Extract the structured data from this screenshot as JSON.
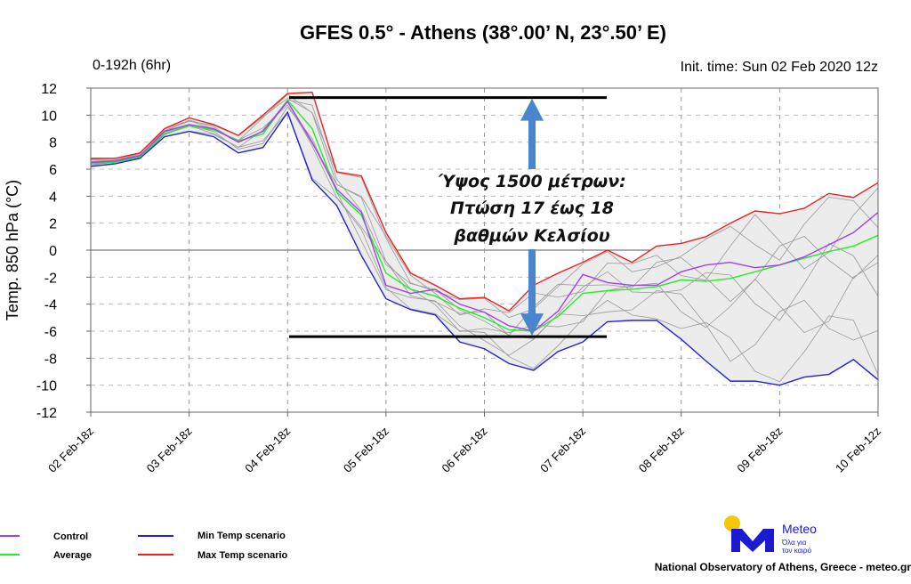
{
  "chart_data": {
    "type": "line",
    "title": "GFES 0.5° - Athens (38°.00’ N, 23°.50’ E)",
    "subtitle_left": "0-192h (6hr)",
    "subtitle_right": "Init. time: Sun 02 Feb 2020 12z",
    "ylabel": "Temp. 850 hPa (°C)",
    "xlabel": "",
    "ylim": [
      -12,
      12
    ],
    "yticks": [
      "12",
      "10",
      "8",
      "6",
      "4",
      "2",
      "0",
      "-2",
      "-4",
      "-6",
      "-8",
      "-10",
      "-12"
    ],
    "xticks": [
      "02 Feb-18z",
      "03 Feb-18z",
      "04 Feb-18z",
      "05 Feb-18z",
      "06 Feb-18z",
      "07 Feb-18z",
      "08 Feb-18z",
      "09 Feb-18z",
      "10 Feb-12z"
    ],
    "x_step_hours": 6,
    "grid": true,
    "series": [
      {
        "name": "Control",
        "color": "#a040f0",
        "values": [
          6.5,
          6.6,
          7.0,
          8.8,
          9.3,
          9.0,
          8.0,
          8.8,
          11.0,
          8.0,
          4.5,
          2.8,
          -2.6,
          -3.2,
          -2.9,
          -4.0,
          -4.6,
          -5.6,
          -6.0,
          -4.5,
          -1.8,
          -2.4,
          -2.6,
          -2.6,
          -1.6,
          -1.1,
          -0.9,
          -1.3,
          -1.1,
          -0.5,
          0.4,
          1.3,
          2.8
        ]
      },
      {
        "name": "Average",
        "color": "#22ee22",
        "values": [
          6.4,
          6.5,
          6.9,
          8.6,
          9.2,
          8.9,
          8.1,
          8.6,
          11.1,
          9.0,
          4.3,
          2.6,
          -1.7,
          -2.9,
          -3.4,
          -4.3,
          -5.0,
          -5.9,
          -6.0,
          -4.9,
          -3.2,
          -3.0,
          -2.9,
          -2.7,
          -2.2,
          -2.3,
          -2.1,
          -1.6,
          -1.1,
          -0.6,
          -0.1,
          0.3,
          1.1
        ]
      },
      {
        "name": "Min Temp scenario",
        "color": "#2020e0",
        "values": [
          6.2,
          6.4,
          6.8,
          8.4,
          8.8,
          8.4,
          7.2,
          7.6,
          10.2,
          5.2,
          3.3,
          -0.4,
          -3.6,
          -4.4,
          -4.8,
          -6.8,
          -7.3,
          -8.4,
          -8.9,
          -7.5,
          -6.8,
          -5.3,
          -5.2,
          -5.2,
          -6.6,
          -8.2,
          -9.7,
          -9.7,
          -10.0,
          -9.4,
          -9.2,
          -8.1,
          -9.6
        ]
      },
      {
        "name": "Max Temp scenario",
        "color": "#ee2020",
        "values": [
          6.8,
          6.8,
          7.2,
          9.0,
          9.8,
          9.3,
          8.5,
          10.0,
          11.6,
          11.7,
          5.8,
          5.5,
          1.3,
          -1.7,
          -2.6,
          -3.6,
          -3.5,
          -4.5,
          -2.6,
          -1.7,
          -0.9,
          0.0,
          -0.9,
          0.3,
          0.5,
          1.0,
          2.0,
          2.9,
          2.7,
          3.1,
          4.2,
          3.9,
          5.0
        ]
      }
    ],
    "annotation": {
      "lines": [
        "Ύψος 1500 μέτρων:",
        "Πτώση 17 έως 18",
        "βαθμών Κελσίου"
      ],
      "upper_level": 11.3,
      "lower_level": -6.4,
      "arrow_color": "#4a86d0"
    },
    "legend_placement": "bottom-left"
  },
  "footer": {
    "logo_name": "Meteo",
    "logo_tagline_1": "Όλα για",
    "logo_tagline_2": "τον καιρό",
    "credit": "National Observatory of Athens, Greece - meteo.gr"
  }
}
